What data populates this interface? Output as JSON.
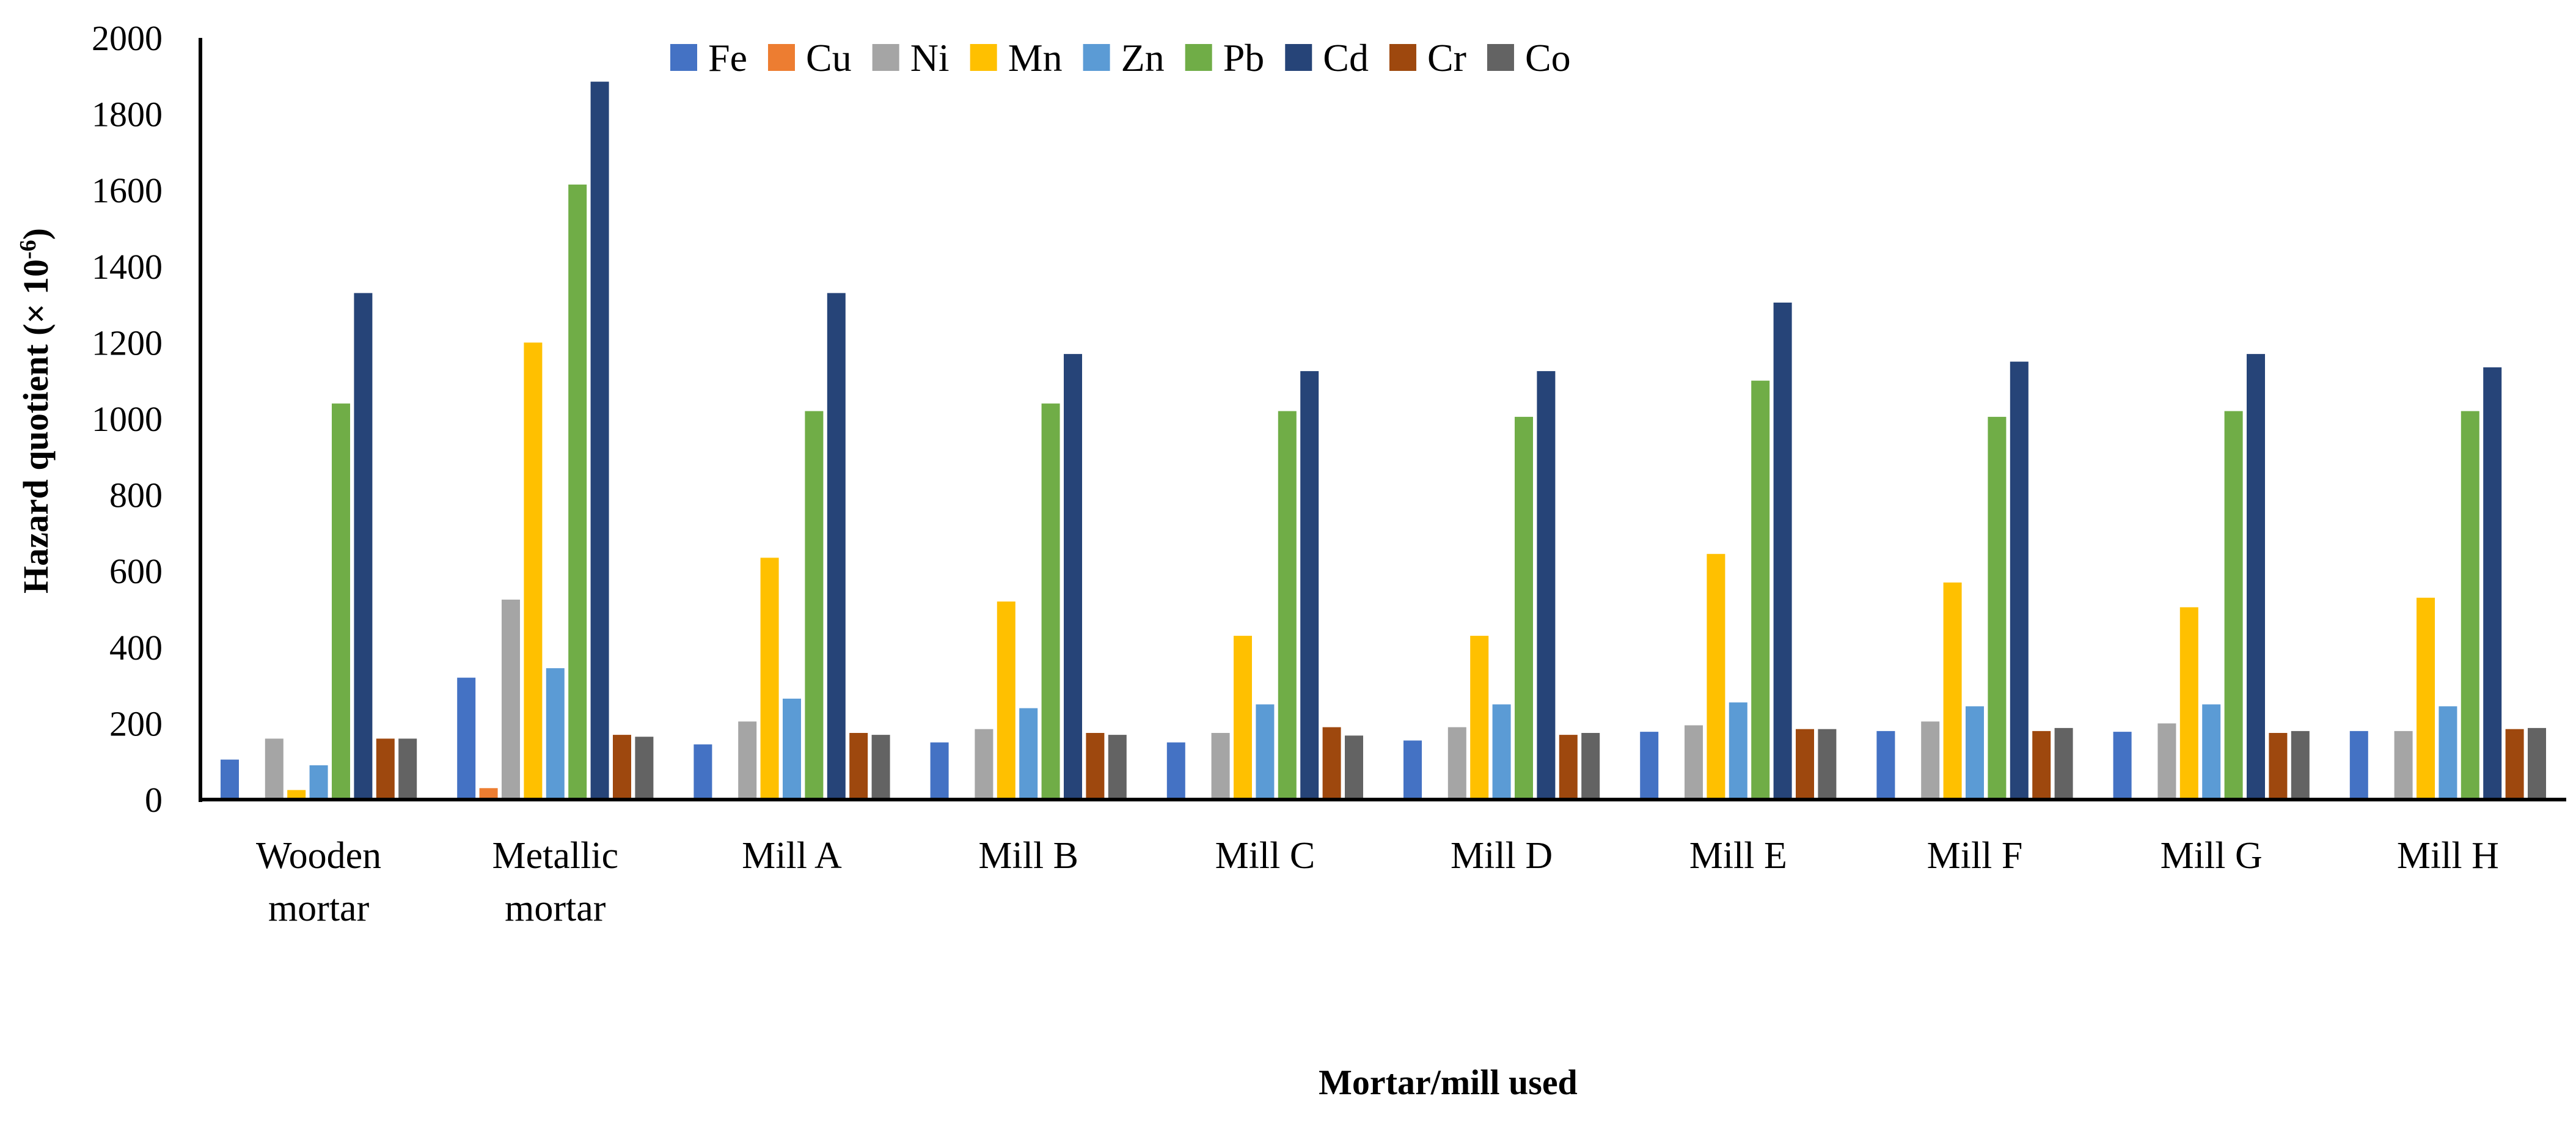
{
  "chart_data": {
    "type": "bar",
    "title": "",
    "xlabel": "Mortar/mill used",
    "ylabel": "Hazard quotient (× 10",
    "ylabel_exponent": "-6",
    "ylabel_suffix": ")",
    "ylim": [
      0,
      2000
    ],
    "yticks": [
      0,
      200,
      400,
      600,
      800,
      1000,
      1200,
      1400,
      1600,
      1800,
      2000
    ],
    "grid": false,
    "legend_position": "top",
    "categories": [
      [
        "Wooden",
        "mortar"
      ],
      [
        "Metallic",
        "mortar"
      ],
      [
        "Mill A"
      ],
      [
        "Mill B"
      ],
      [
        "Mill C"
      ],
      [
        "Mill D"
      ],
      [
        "Mill E"
      ],
      [
        "Mill F"
      ],
      [
        "Mill G"
      ],
      [
        "Mill H"
      ]
    ],
    "series": [
      {
        "name": "Fe",
        "color": "#4472C4",
        "values": [
          105,
          320,
          145,
          150,
          150,
          155,
          178,
          180,
          178,
          180
        ]
      },
      {
        "name": "Cu",
        "color": "#ED7D31",
        "values": [
          0,
          30,
          0,
          0,
          0,
          0,
          0,
          0,
          0,
          0
        ]
      },
      {
        "name": "Ni",
        "color": "#A5A5A5",
        "values": [
          160,
          525,
          205,
          185,
          175,
          190,
          195,
          205,
          200,
          180
        ]
      },
      {
        "name": "Mn",
        "color": "#FFC000",
        "values": [
          25,
          1200,
          635,
          520,
          430,
          430,
          645,
          570,
          505,
          530
        ]
      },
      {
        "name": "Zn",
        "color": "#5B9BD5",
        "values": [
          90,
          345,
          265,
          240,
          250,
          250,
          255,
          245,
          250,
          245
        ]
      },
      {
        "name": "Pb",
        "color": "#70AD47",
        "values": [
          1040,
          1615,
          1020,
          1040,
          1020,
          1005,
          1100,
          1005,
          1020,
          1020
        ]
      },
      {
        "name": "Cd",
        "color": "#264478",
        "values": [
          1330,
          1885,
          1330,
          1170,
          1125,
          1125,
          1305,
          1150,
          1170,
          1135
        ]
      },
      {
        "name": "Cr",
        "color": "#9E480E",
        "values": [
          160,
          170,
          175,
          175,
          190,
          170,
          185,
          180,
          175,
          185
        ]
      },
      {
        "name": "Co",
        "color": "#636363",
        "values": [
          160,
          165,
          170,
          170,
          168,
          175,
          185,
          188,
          180,
          188
        ]
      }
    ]
  }
}
